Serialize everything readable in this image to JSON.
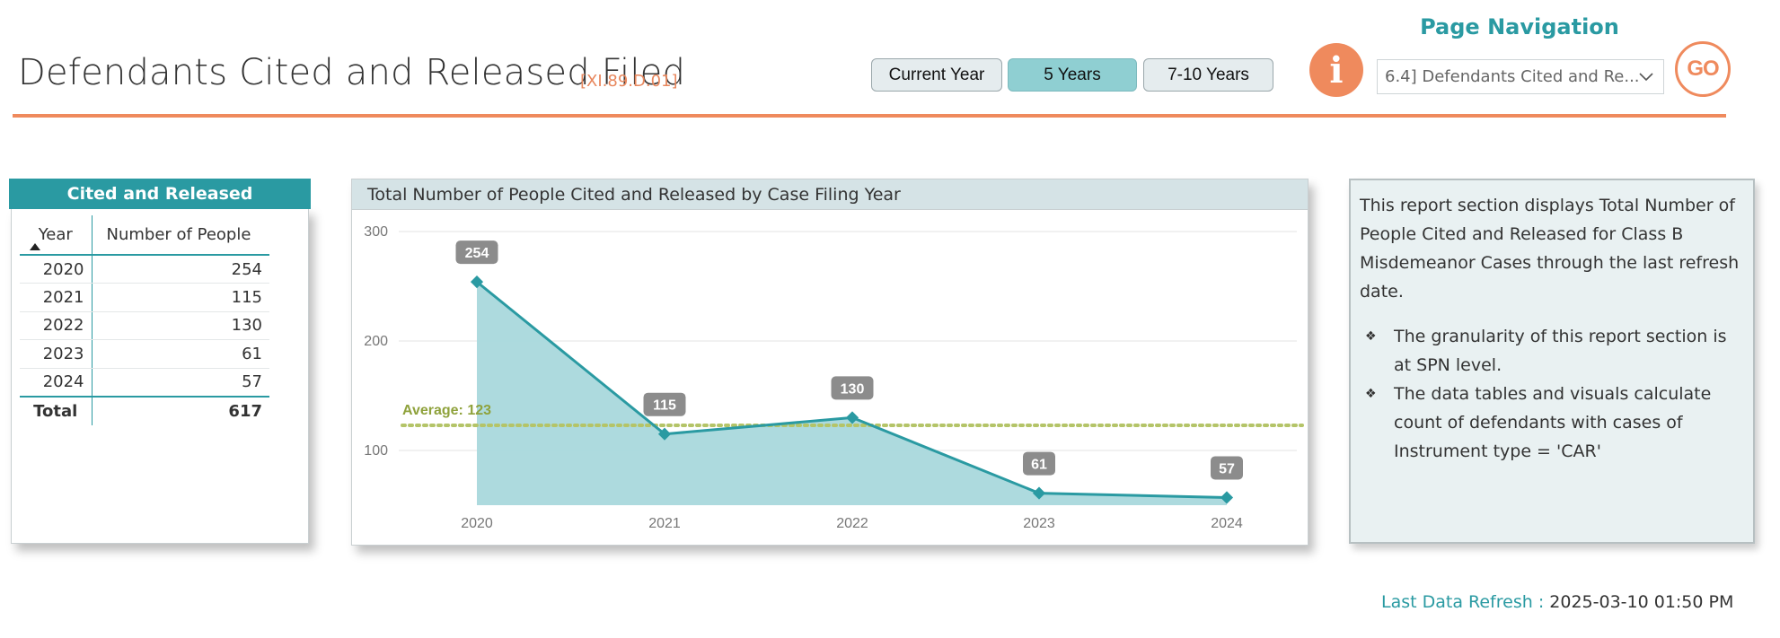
{
  "header": {
    "title": "Defendants Cited and Released Filed",
    "code": "[XI.89.D.01]",
    "range_buttons": [
      {
        "label": "Current Year",
        "active": false
      },
      {
        "label": "5 Years",
        "active": true
      },
      {
        "label": "7-10 Years",
        "active": false
      }
    ],
    "info_glyph": "i",
    "navigation": {
      "label": "Page Navigation",
      "selected": "6.4] Defendants Cited and Re...",
      "go_label": "GO"
    }
  },
  "table": {
    "title": "Cited and Released",
    "columns": [
      "Year",
      "Number of People"
    ],
    "rows": [
      {
        "year": "2020",
        "count": "254"
      },
      {
        "year": "2021",
        "count": "115"
      },
      {
        "year": "2022",
        "count": "130"
      },
      {
        "year": "2023",
        "count": "61"
      },
      {
        "year": "2024",
        "count": "57"
      }
    ],
    "total_label": "Total",
    "total_value": "617"
  },
  "chart_data": {
    "type": "area",
    "title": "Total Number of People Cited and Released by Case Filing Year",
    "categories": [
      "2020",
      "2021",
      "2022",
      "2023",
      "2024"
    ],
    "values": [
      254,
      115,
      130,
      61,
      57
    ],
    "data_labels": [
      "254",
      "115",
      "130",
      "61",
      "57"
    ],
    "y_ticks": [
      "100",
      "200",
      "300"
    ],
    "ylim": [
      50,
      300
    ],
    "average": {
      "label": "Average: 123",
      "value": 123
    },
    "grid": true,
    "colors": {
      "line": "#2a9aa2",
      "fill": "#a9d8dc",
      "average": "#b4c468",
      "label_bg": "#8c8c8c"
    }
  },
  "info": {
    "intro": "This report section displays Total Number of People Cited and Released for Class B Misdemeanor Cases through the last refresh date.",
    "bullets": [
      "The granularity of this report section is at SPN level.",
      "The data tables and visuals calculate count of defendants with cases of Instrument type = 'CAR'"
    ],
    "bullet_glyph": "❖"
  },
  "footer": {
    "refresh_label": "Last Data Refresh :",
    "refresh_value": "2025-03-10 01:50 PM"
  },
  "colors": {
    "accent_teal": "#2a9aa2",
    "accent_orange": "#ef8a5d"
  }
}
